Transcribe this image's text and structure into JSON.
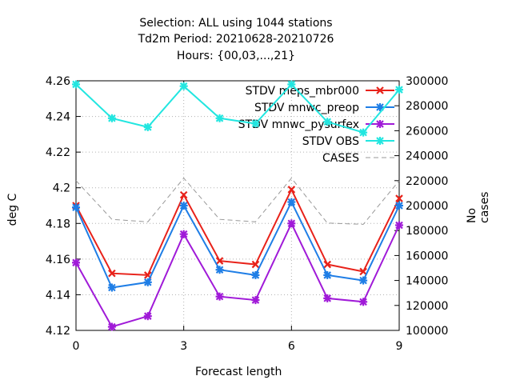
{
  "chart_data": {
    "type": "line",
    "title_lines": [
      "Selection: ALL using  1044 stations",
      "Td2m   Period: 20210628-20210726",
      "Hours: {00,03,...,21}"
    ],
    "xlabel": "Forecast length",
    "ylabel": "deg C",
    "y2label": "No cases",
    "x": [
      0,
      1,
      2,
      3,
      4,
      5,
      6,
      7,
      8,
      9
    ],
    "xlim": [
      0,
      9
    ],
    "xticks": [
      "0",
      "3",
      "6",
      "9"
    ],
    "ylim": [
      4.12,
      4.26
    ],
    "yticks": [
      "4.12",
      "4.14",
      "4.16",
      "4.18",
      "4.2",
      "4.22",
      "4.24",
      "4.26"
    ],
    "y2lim": [
      100000,
      300000
    ],
    "y2ticks": [
      "100000",
      "120000",
      "140000",
      "160000",
      "180000",
      "200000",
      "220000",
      "240000",
      "260000",
      "280000",
      "300000"
    ],
    "grid": true,
    "legend_position": "top-right",
    "series": [
      {
        "name": "STDV meps_mbr000",
        "color": "#e8221a",
        "axis": "left",
        "values": [
          4.19,
          4.152,
          4.151,
          4.196,
          4.159,
          4.157,
          4.199,
          4.157,
          4.153,
          4.194
        ]
      },
      {
        "name": "STDV mnwc_preop",
        "color": "#1f7ee6",
        "axis": "left",
        "values": [
          4.189,
          4.144,
          4.147,
          4.19,
          4.154,
          4.151,
          4.192,
          4.151,
          4.148,
          4.19
        ]
      },
      {
        "name": "STDV mnwc_pysurfex",
        "color": "#a01ad8",
        "axis": "left",
        "values": [
          4.158,
          4.122,
          4.128,
          4.174,
          4.139,
          4.137,
          4.18,
          4.138,
          4.136,
          4.179
        ]
      },
      {
        "name": "STDV OBS",
        "color": "#22e6e0",
        "axis": "left",
        "values": [
          4.258,
          4.239,
          4.234,
          4.257,
          4.239,
          4.236,
          4.258,
          4.237,
          4.231,
          4.255
        ]
      },
      {
        "name": "CASES",
        "color": "#999999",
        "axis": "right",
        "dashed": true,
        "values": [
          220000,
          189000,
          187000,
          222000,
          189000,
          187000,
          222000,
          186000,
          185000,
          220000
        ]
      }
    ]
  }
}
